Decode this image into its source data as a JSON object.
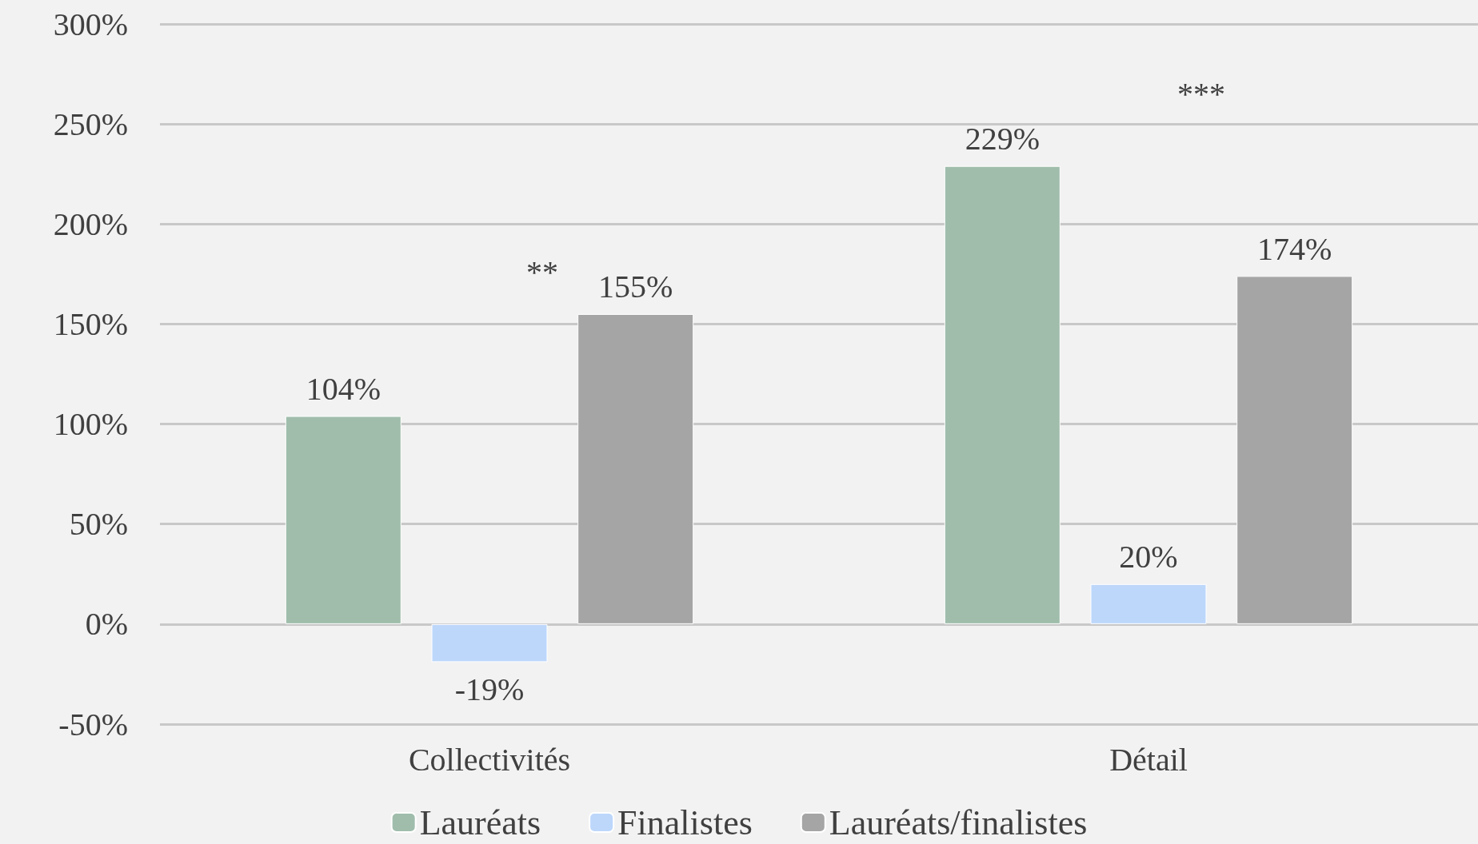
{
  "chart_data": {
    "type": "bar",
    "categories": [
      "Collectivités",
      "Détail"
    ],
    "series": [
      {
        "name": "Lauréats",
        "color": "#a0bdac",
        "values": [
          104,
          229
        ],
        "value_labels": [
          "104%",
          "229%"
        ]
      },
      {
        "name": "Finalistes",
        "color": "#bdd7fb",
        "values": [
          -19,
          20
        ],
        "value_labels": [
          "-19%",
          "20%"
        ]
      },
      {
        "name": "Lauréats/finalistes",
        "color": "#a5a5a5",
        "values": [
          155,
          174
        ],
        "value_labels": [
          "155%",
          "174%"
        ]
      }
    ],
    "ylim": [
      -50,
      300
    ],
    "yticks": [
      {
        "value": -50,
        "label": "-50%"
      },
      {
        "value": 0,
        "label": "0%"
      },
      {
        "value": 50,
        "label": "50%"
      },
      {
        "value": 100,
        "label": "100%"
      },
      {
        "value": 150,
        "label": "150%"
      },
      {
        "value": 200,
        "label": "200%"
      },
      {
        "value": 250,
        "label": "250%"
      },
      {
        "value": 300,
        "label": "300%"
      }
    ],
    "grid": "y",
    "legend": "bottom",
    "annotations": [
      "**",
      "***"
    ]
  }
}
